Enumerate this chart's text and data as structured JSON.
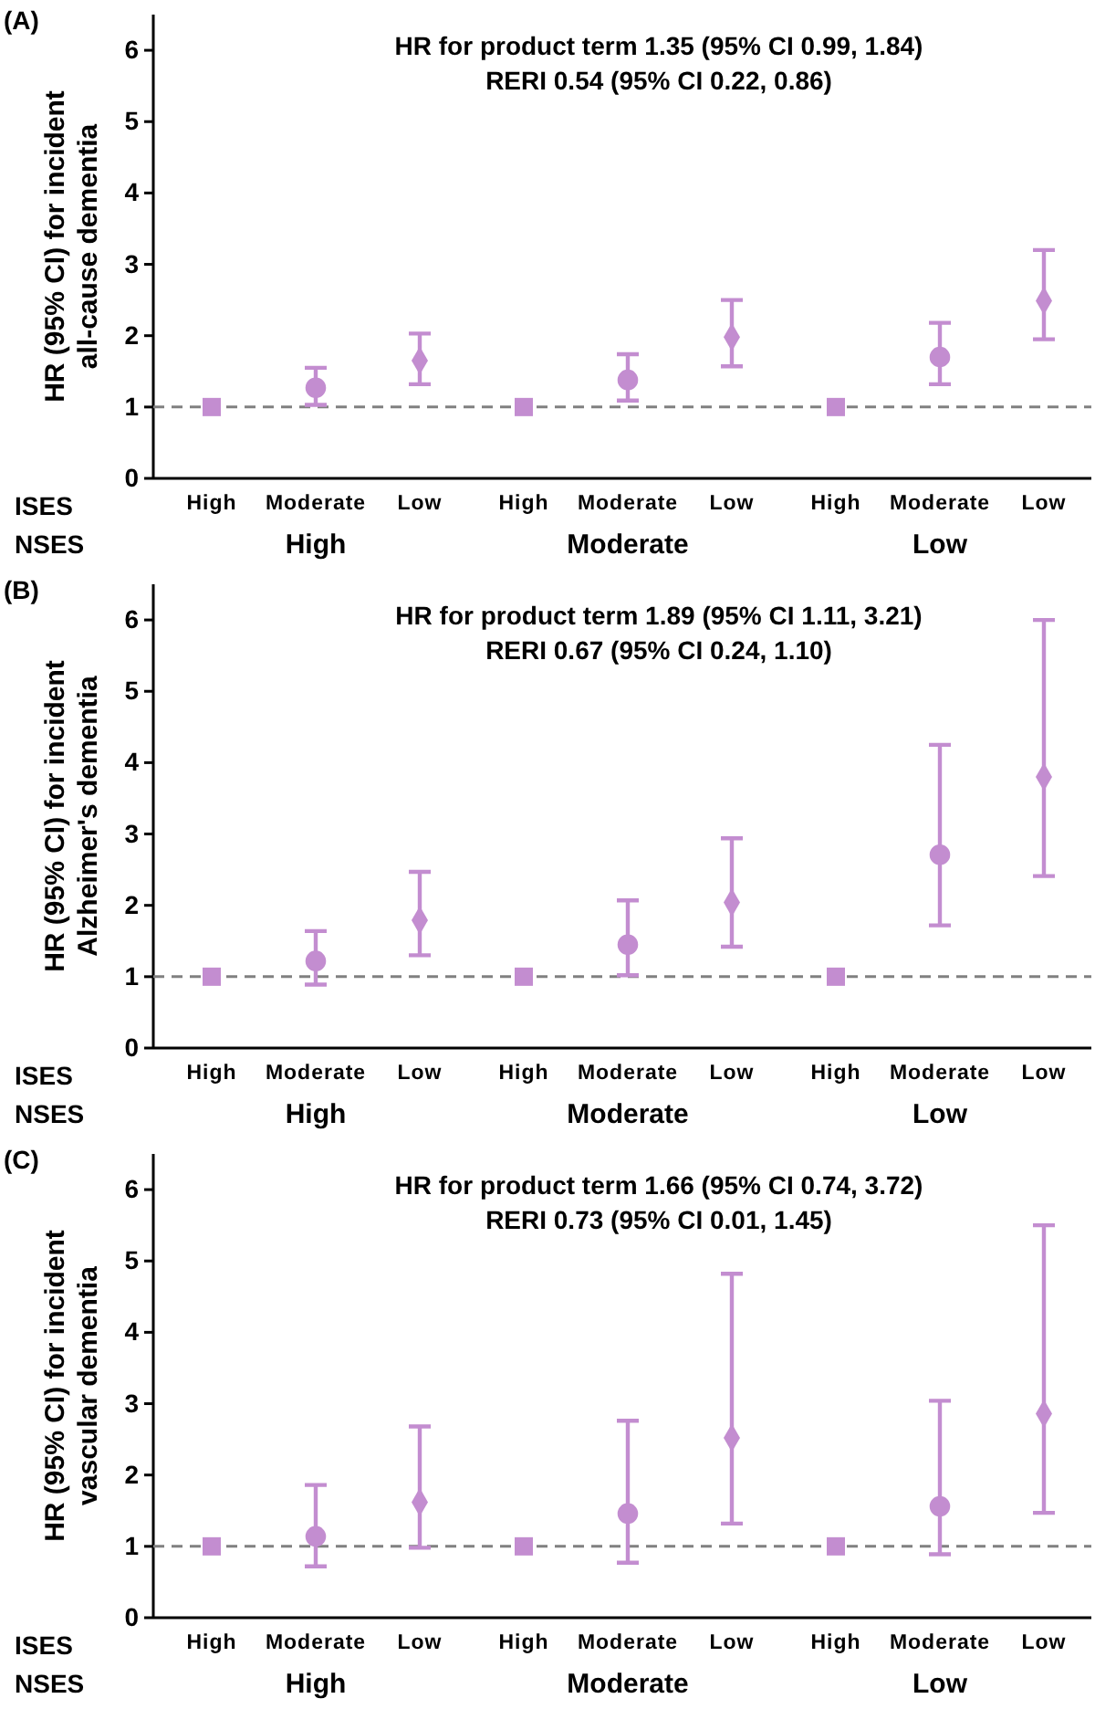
{
  "chart_data": [
    {
      "type": "scatter",
      "title": "(A)",
      "ylabel": "HR (95% CI) for incident\nall-cause dementia",
      "annotations": [
        "HR for product term 1.35 (95% CI 0.99, 1.84)",
        "RERI 0.54 (95% CI 0.22, 0.86)",
        "ISES",
        "NSES",
        "High",
        "Moderate",
        "Low"
      ],
      "categories": [
        "High",
        "Moderate",
        "Low",
        "High",
        "Moderate",
        "Low",
        "High",
        "Moderate",
        "Low"
      ],
      "series": [
        {
          "color": "#c38dd0",
          "marker": "square",
          "values": [
            1,
            null,
            null,
            1,
            null,
            null,
            1,
            null,
            null
          ],
          "errors": [
            null,
            null,
            null,
            null,
            null,
            null,
            null,
            null,
            null
          ]
        },
        {
          "color": "#c38dd0",
          "marker": "circle",
          "values": [
            null,
            1.27,
            null,
            null,
            1.38,
            null,
            null,
            1.7,
            null
          ],
          "errors": [
            null,
            [
              1.03,
              1.55
            ],
            null,
            null,
            [
              1.09,
              1.74
            ],
            null,
            null,
            [
              1.32,
              2.18
            ],
            null
          ]
        },
        {
          "color": "#c38dd0",
          "marker": "diamond",
          "values": [
            null,
            null,
            1.65,
            null,
            null,
            1.98,
            null,
            null,
            2.49
          ],
          "errors": [
            null,
            null,
            [
              1.32,
              2.03
            ],
            null,
            null,
            [
              1.57,
              2.5
            ],
            null,
            null,
            [
              1.95,
              3.2
            ]
          ]
        }
      ],
      "ylim": [
        0,
        6.5
      ],
      "yticks": [
        0,
        1,
        2,
        3,
        4,
        5,
        6
      ],
      "grid": false,
      "ref_lines": [
        {
          "axis": "y",
          "value": 1,
          "color": "#808080",
          "line_style": "dashed"
        }
      ]
    },
    {
      "type": "scatter",
      "title": "(B)",
      "ylabel": "HR (95% CI) for incident\nAlzheimer's dementia",
      "annotations": [
        "HR for product term 1.89 (95% CI 1.11, 3.21)",
        "RERI 0.67 (95% CI 0.24, 1.10)",
        "ISES",
        "NSES",
        "High",
        "Moderate",
        "Low"
      ],
      "categories": [
        "High",
        "Moderate",
        "Low",
        "High",
        "Moderate",
        "Low",
        "High",
        "Moderate",
        "Low"
      ],
      "series": [
        {
          "color": "#c38dd0",
          "marker": "square",
          "values": [
            1,
            null,
            null,
            1,
            null,
            null,
            1,
            null,
            null
          ],
          "errors": [
            null,
            null,
            null,
            null,
            null,
            null,
            null,
            null,
            null
          ]
        },
        {
          "color": "#c38dd0",
          "marker": "circle",
          "values": [
            null,
            1.22,
            null,
            null,
            1.45,
            null,
            null,
            2.71,
            null
          ],
          "errors": [
            null,
            [
              0.89,
              1.64
            ],
            null,
            null,
            [
              1.02,
              2.07
            ],
            null,
            null,
            [
              1.72,
              4.25
            ],
            null
          ]
        },
        {
          "color": "#c38dd0",
          "marker": "diamond",
          "values": [
            null,
            null,
            1.79,
            null,
            null,
            2.04,
            null,
            null,
            3.8
          ],
          "errors": [
            null,
            null,
            [
              1.3,
              2.47
            ],
            null,
            null,
            [
              1.42,
              2.94
            ],
            null,
            null,
            [
              2.41,
              6.0
            ]
          ]
        }
      ],
      "ylim": [
        0,
        6.5
      ],
      "yticks": [
        0,
        1,
        2,
        3,
        4,
        5,
        6
      ],
      "grid": false,
      "ref_lines": [
        {
          "axis": "y",
          "value": 1,
          "color": "#808080",
          "line_style": "dashed"
        }
      ]
    },
    {
      "type": "scatter",
      "title": "(C)",
      "ylabel": "HR (95% CI) for incident\nvascular dementia",
      "annotations": [
        "HR for product term 1.66 (95% CI 0.74, 3.72)",
        "RERI 0.73 (95% CI 0.01, 1.45)",
        "ISES",
        "NSES",
        "High",
        "Moderate",
        "Low"
      ],
      "categories": [
        "High",
        "Moderate",
        "Low",
        "High",
        "Moderate",
        "Low",
        "High",
        "Moderate",
        "Low"
      ],
      "series": [
        {
          "color": "#c38dd0",
          "marker": "square",
          "values": [
            1,
            null,
            null,
            1,
            null,
            null,
            1,
            null,
            null
          ],
          "errors": [
            null,
            null,
            null,
            null,
            null,
            null,
            null,
            null,
            null
          ]
        },
        {
          "color": "#c38dd0",
          "marker": "circle",
          "values": [
            null,
            1.14,
            null,
            null,
            1.46,
            null,
            null,
            1.56,
            null
          ],
          "errors": [
            null,
            [
              0.72,
              1.86
            ],
            null,
            null,
            [
              0.77,
              2.76
            ],
            null,
            null,
            [
              0.89,
              3.04
            ],
            null
          ]
        },
        {
          "color": "#c38dd0",
          "marker": "diamond",
          "values": [
            null,
            null,
            1.62,
            null,
            null,
            2.52,
            null,
            null,
            2.86
          ],
          "errors": [
            null,
            null,
            [
              0.98,
              2.68
            ],
            null,
            null,
            [
              1.32,
              4.82
            ],
            null,
            null,
            [
              1.47,
              5.5
            ]
          ]
        }
      ],
      "ylim": [
        0,
        6.5
      ],
      "yticks": [
        0,
        1,
        2,
        3,
        4,
        5,
        6
      ],
      "grid": false,
      "ref_lines": [
        {
          "axis": "y",
          "value": 1,
          "color": "#808080",
          "line_style": "dashed"
        }
      ]
    }
  ]
}
